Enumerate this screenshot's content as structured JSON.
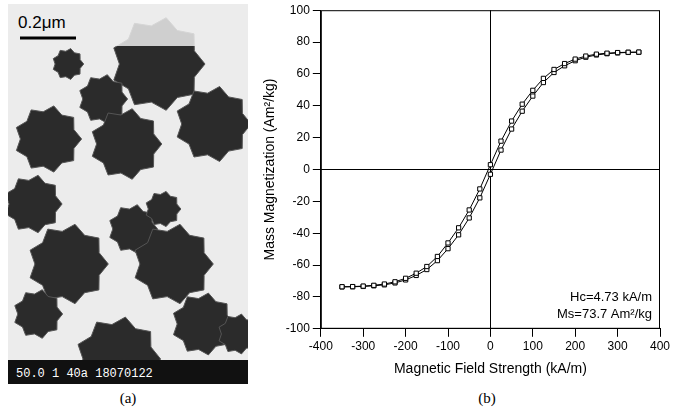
{
  "micrograph": {
    "scale_bar": "0.2μm",
    "footer": "50.0 1 40a 18070122",
    "caption": "(a)"
  },
  "chart_data": {
    "type": "line",
    "caption": "(b)",
    "x_label": "Magnetic Field Strength (kA/m)",
    "y_label": "Mass Magnetization (Am²/kg)",
    "annotations": [
      "Hc=4.73 kA/m",
      "Ms=73.7 Am²/kg"
    ],
    "x": [
      -350,
      -325,
      -300,
      -275,
      -250,
      -225,
      -200,
      -175,
      -150,
      -125,
      -100,
      -75,
      -50,
      -25,
      0,
      25,
      50,
      75,
      100,
      125,
      150,
      175,
      200,
      225,
      250,
      275,
      300,
      325,
      350
    ],
    "series": [
      {
        "color": "#000000",
        "marker": "square",
        "line_style": "solid",
        "values": [
          -73.6,
          -73.5,
          -73.2,
          -72.7,
          -71.9,
          -70.5,
          -68.3,
          -65.1,
          -60.9,
          -54.6,
          -46.1,
          -36.6,
          -25.4,
          -12.2,
          3.0,
          17.8,
          30.4,
          41.0,
          49.7,
          57.2,
          62.8,
          66.5,
          69.3,
          71.2,
          72.4,
          73.0,
          73.4,
          73.6,
          73.7
        ]
      },
      {
        "color": "#000000",
        "marker": "square",
        "line_style": "solid",
        "values": [
          -73.7,
          -73.6,
          -73.4,
          -73.0,
          -72.4,
          -71.2,
          -69.3,
          -66.5,
          -62.8,
          -57.2,
          -49.7,
          -41.0,
          -30.4,
          -17.8,
          -3.0,
          12.2,
          25.4,
          36.6,
          46.1,
          54.6,
          60.9,
          65.1,
          68.3,
          70.5,
          71.9,
          72.7,
          73.2,
          73.5,
          73.6
        ]
      }
    ],
    "xlim": [
      -400,
      400
    ],
    "xticks": [
      -400,
      -300,
      -200,
      -100,
      0,
      100,
      200,
      300,
      400
    ],
    "ylim": [
      -100,
      100
    ],
    "yticks": [
      -100,
      -80,
      -60,
      -40,
      -20,
      0,
      20,
      40,
      60,
      80,
      100
    ],
    "grid": false
  }
}
